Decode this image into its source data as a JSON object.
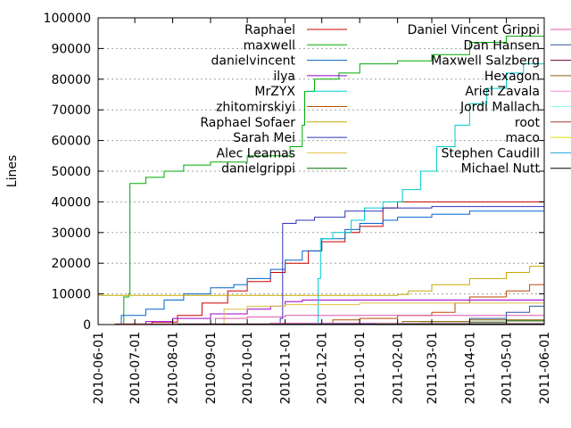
{
  "chart_data": {
    "type": "line",
    "title": "",
    "xlabel": "",
    "ylabel": "Lines",
    "xlim": [
      "2010-06-01",
      "2011-06-01"
    ],
    "ylim": [
      0,
      100000
    ],
    "x_ticks": [
      "2010-06-01",
      "2010-07-01",
      "2010-08-01",
      "2010-09-01",
      "2010-10-01",
      "2010-11-01",
      "2010-12-01",
      "2011-01-01",
      "2011-02-01",
      "2011-03-01",
      "2011-04-01",
      "2011-05-01",
      "2011-06-01"
    ],
    "y_ticks": [
      "0",
      "10000",
      "20000",
      "30000",
      "40000",
      "50000",
      "60000",
      "70000",
      "80000",
      "90000",
      "100000"
    ],
    "grid": "dotted",
    "legend_position": "top-right, two columns",
    "series": [
      {
        "name": "Raphael",
        "color": "#cc0000",
        "points": [
          [
            "2010-06-01",
            0
          ],
          [
            "2010-06-25",
            0
          ],
          [
            "2010-07-15",
            800
          ],
          [
            "2010-08-05",
            3000
          ],
          [
            "2010-08-25",
            7000
          ],
          [
            "2010-09-15",
            11000
          ],
          [
            "2010-10-01",
            14000
          ],
          [
            "2010-10-20",
            17000
          ],
          [
            "2010-11-01",
            20000
          ],
          [
            "2010-11-20",
            24000
          ],
          [
            "2010-12-01",
            27000
          ],
          [
            "2010-12-20",
            30000
          ],
          [
            "2011-01-01",
            32000
          ],
          [
            "2011-01-20",
            38000
          ],
          [
            "2011-02-01",
            40000
          ],
          [
            "2011-06-01",
            40000
          ]
        ]
      },
      {
        "name": "maxwell",
        "color": "#00aa00",
        "points": [
          [
            "2010-06-01",
            0
          ],
          [
            "2010-06-20",
            0
          ],
          [
            "2010-06-22",
            9000
          ],
          [
            "2010-06-26",
            10000
          ],
          [
            "2010-06-27",
            46000
          ],
          [
            "2010-07-10",
            48000
          ],
          [
            "2010-07-25",
            50000
          ],
          [
            "2010-08-10",
            52000
          ],
          [
            "2010-09-01",
            53000
          ],
          [
            "2010-10-01",
            55000
          ],
          [
            "2010-11-05",
            58000
          ],
          [
            "2010-11-15",
            65000
          ],
          [
            "2010-11-17",
            76000
          ],
          [
            "2010-11-25",
            80000
          ],
          [
            "2010-12-15",
            82000
          ],
          [
            "2011-01-01",
            85000
          ],
          [
            "2011-02-01",
            86000
          ],
          [
            "2011-03-01",
            88000
          ],
          [
            "2011-04-01",
            92000
          ],
          [
            "2011-05-01",
            94000
          ],
          [
            "2011-06-01",
            95000
          ]
        ]
      },
      {
        "name": "danielvincent",
        "color": "#0066cc",
        "points": [
          [
            "2010-06-01",
            0
          ],
          [
            "2010-06-15",
            0
          ],
          [
            "2010-06-20",
            3000
          ],
          [
            "2010-07-10",
            5000
          ],
          [
            "2010-07-25",
            8000
          ],
          [
            "2010-08-10",
            10000
          ],
          [
            "2010-09-01",
            12000
          ],
          [
            "2010-09-20",
            13000
          ],
          [
            "2010-10-01",
            15000
          ],
          [
            "2010-10-20",
            18000
          ],
          [
            "2010-11-01",
            21000
          ],
          [
            "2010-11-15",
            24000
          ],
          [
            "2010-12-01",
            28000
          ],
          [
            "2010-12-20",
            31000
          ],
          [
            "2011-01-01",
            33000
          ],
          [
            "2011-01-20",
            34000
          ],
          [
            "2011-02-01",
            35000
          ],
          [
            "2011-03-01",
            36000
          ],
          [
            "2011-04-01",
            37000
          ],
          [
            "2011-06-01",
            37000
          ]
        ]
      },
      {
        "name": "ilya",
        "color": "#9900cc",
        "points": [
          [
            "2010-06-01",
            0
          ],
          [
            "2010-06-25",
            0
          ],
          [
            "2010-07-10",
            1000
          ],
          [
            "2010-08-01",
            2000
          ],
          [
            "2010-09-01",
            3500
          ],
          [
            "2010-10-01",
            5000
          ],
          [
            "2010-10-20",
            6000
          ],
          [
            "2010-11-01",
            7500
          ],
          [
            "2010-11-15",
            8000
          ],
          [
            "2011-06-01",
            8000
          ]
        ]
      },
      {
        "name": "MrZYX",
        "color": "#00cccc",
        "points": [
          [
            "2010-06-01",
            0
          ],
          [
            "2010-11-25",
            0
          ],
          [
            "2010-11-28",
            15000
          ],
          [
            "2010-11-30",
            28000
          ],
          [
            "2010-12-10",
            30000
          ],
          [
            "2010-12-25",
            34000
          ],
          [
            "2011-01-05",
            38000
          ],
          [
            "2011-01-20",
            40000
          ],
          [
            "2011-02-05",
            44000
          ],
          [
            "2011-02-20",
            50000
          ],
          [
            "2011-03-05",
            58000
          ],
          [
            "2011-03-20",
            65000
          ],
          [
            "2011-04-01",
            72000
          ],
          [
            "2011-04-15",
            77000
          ],
          [
            "2011-05-01",
            82000
          ],
          [
            "2011-05-15",
            85000
          ],
          [
            "2011-06-01",
            88000
          ]
        ]
      },
      {
        "name": "zhitomirskiyi",
        "color": "#b84a00",
        "points": [
          [
            "2010-06-01",
            0
          ],
          [
            "2010-12-01",
            0
          ],
          [
            "2010-12-10",
            1500
          ],
          [
            "2011-01-01",
            2000
          ],
          [
            "2011-02-01",
            3000
          ],
          [
            "2011-03-01",
            4000
          ],
          [
            "2011-03-20",
            7000
          ],
          [
            "2011-04-01",
            9000
          ],
          [
            "2011-05-01",
            11000
          ],
          [
            "2011-05-20",
            13000
          ],
          [
            "2011-06-01",
            13500
          ]
        ]
      },
      {
        "name": "Raphael Sofaer",
        "color": "#c8aa00",
        "points": [
          [
            "2010-06-01",
            9500
          ],
          [
            "2011-02-01",
            9800
          ],
          [
            "2011-02-10",
            11000
          ],
          [
            "2011-03-01",
            13000
          ],
          [
            "2011-04-01",
            15000
          ],
          [
            "2011-05-01",
            17000
          ],
          [
            "2011-05-20",
            19000
          ],
          [
            "2011-06-01",
            20000
          ]
        ]
      },
      {
        "name": "Sarah Mei",
        "color": "#3333bb",
        "points": [
          [
            "2010-06-01",
            0
          ],
          [
            "2010-10-25",
            0
          ],
          [
            "2010-10-28",
            2000
          ],
          [
            "2010-10-30",
            33000
          ],
          [
            "2010-11-10",
            34000
          ],
          [
            "2010-11-25",
            35000
          ],
          [
            "2010-12-20",
            37000
          ],
          [
            "2011-01-20",
            38000
          ],
          [
            "2011-03-01",
            38500
          ],
          [
            "2011-06-01",
            39000
          ]
        ]
      },
      {
        "name": "Alec Leamas",
        "color": "#e0c040",
        "points": [
          [
            "2010-06-01",
            0
          ],
          [
            "2010-09-10",
            0
          ],
          [
            "2010-09-12",
            5000
          ],
          [
            "2010-10-01",
            6000
          ],
          [
            "2010-11-01",
            6500
          ],
          [
            "2011-01-01",
            7000
          ],
          [
            "2011-06-01",
            7000
          ]
        ]
      },
      {
        "name": "danielgrippi",
        "color": "#006600",
        "points": [
          [
            "2010-06-01",
            0
          ],
          [
            "2011-02-15",
            0
          ],
          [
            "2011-02-20",
            500
          ],
          [
            "2011-04-01",
            800
          ],
          [
            "2011-05-01",
            1200
          ],
          [
            "2011-06-01",
            1500
          ]
        ]
      },
      {
        "name": "Daniel Vincent Grippi",
        "color": "#dd55aa",
        "points": [
          [
            "2010-06-01",
            0
          ],
          [
            "2010-09-01",
            0
          ],
          [
            "2010-09-05",
            2000
          ],
          [
            "2010-10-01",
            2500
          ],
          [
            "2010-11-01",
            3000
          ],
          [
            "2011-06-01",
            3200
          ]
        ]
      },
      {
        "name": "Dan Hansen",
        "color": "#335599",
        "points": [
          [
            "2010-06-01",
            0
          ],
          [
            "2011-03-25",
            0
          ],
          [
            "2011-04-01",
            2000
          ],
          [
            "2011-05-01",
            4000
          ],
          [
            "2011-05-20",
            6000
          ],
          [
            "2011-06-01",
            8000
          ]
        ]
      },
      {
        "name": "Maxwell Salzberg",
        "color": "#660033",
        "points": [
          [
            "2010-06-01",
            0
          ],
          [
            "2010-12-01",
            0
          ],
          [
            "2010-12-05",
            400
          ],
          [
            "2011-06-01",
            600
          ]
        ]
      },
      {
        "name": "Hexagon",
        "color": "#886600",
        "points": [
          [
            "2010-06-01",
            0
          ],
          [
            "2011-02-01",
            0
          ],
          [
            "2011-02-05",
            1000
          ],
          [
            "2011-04-01",
            1500
          ],
          [
            "2011-06-01",
            1800
          ]
        ]
      },
      {
        "name": "Ariel Zavala",
        "color": "#ff88dd",
        "points": [
          [
            "2010-06-01",
            0
          ],
          [
            "2010-10-15",
            0
          ],
          [
            "2010-10-20",
            500
          ],
          [
            "2011-06-01",
            900
          ]
        ]
      },
      {
        "name": "Jordi Mallach",
        "color": "#88ffee",
        "points": [
          [
            "2010-06-01",
            0
          ],
          [
            "2011-03-01",
            0
          ],
          [
            "2011-03-05",
            300
          ],
          [
            "2011-06-01",
            500
          ]
        ]
      },
      {
        "name": "root",
        "color": "#aa3333",
        "points": [
          [
            "2010-06-01",
            0
          ],
          [
            "2010-06-10",
            0
          ],
          [
            "2010-06-15",
            200
          ],
          [
            "2011-06-01",
            300
          ]
        ]
      },
      {
        "name": "maco",
        "color": "#dddd00",
        "points": [
          [
            "2010-06-01",
            0
          ],
          [
            "2011-01-10",
            0
          ],
          [
            "2011-01-15",
            300
          ],
          [
            "2011-06-01",
            400
          ]
        ]
      },
      {
        "name": "Stephen Caudill",
        "color": "#22aadd",
        "points": [
          [
            "2010-06-01",
            0
          ],
          [
            "2010-11-10",
            0
          ],
          [
            "2010-11-15",
            200
          ],
          [
            "2011-06-01",
            300
          ]
        ]
      },
      {
        "name": "Michael Nutt",
        "color": "#000000",
        "points": [
          [
            "2010-06-01",
            0
          ],
          [
            "2010-08-01",
            0
          ],
          [
            "2010-08-05",
            150
          ],
          [
            "2011-06-01",
            250
          ]
        ]
      }
    ]
  }
}
